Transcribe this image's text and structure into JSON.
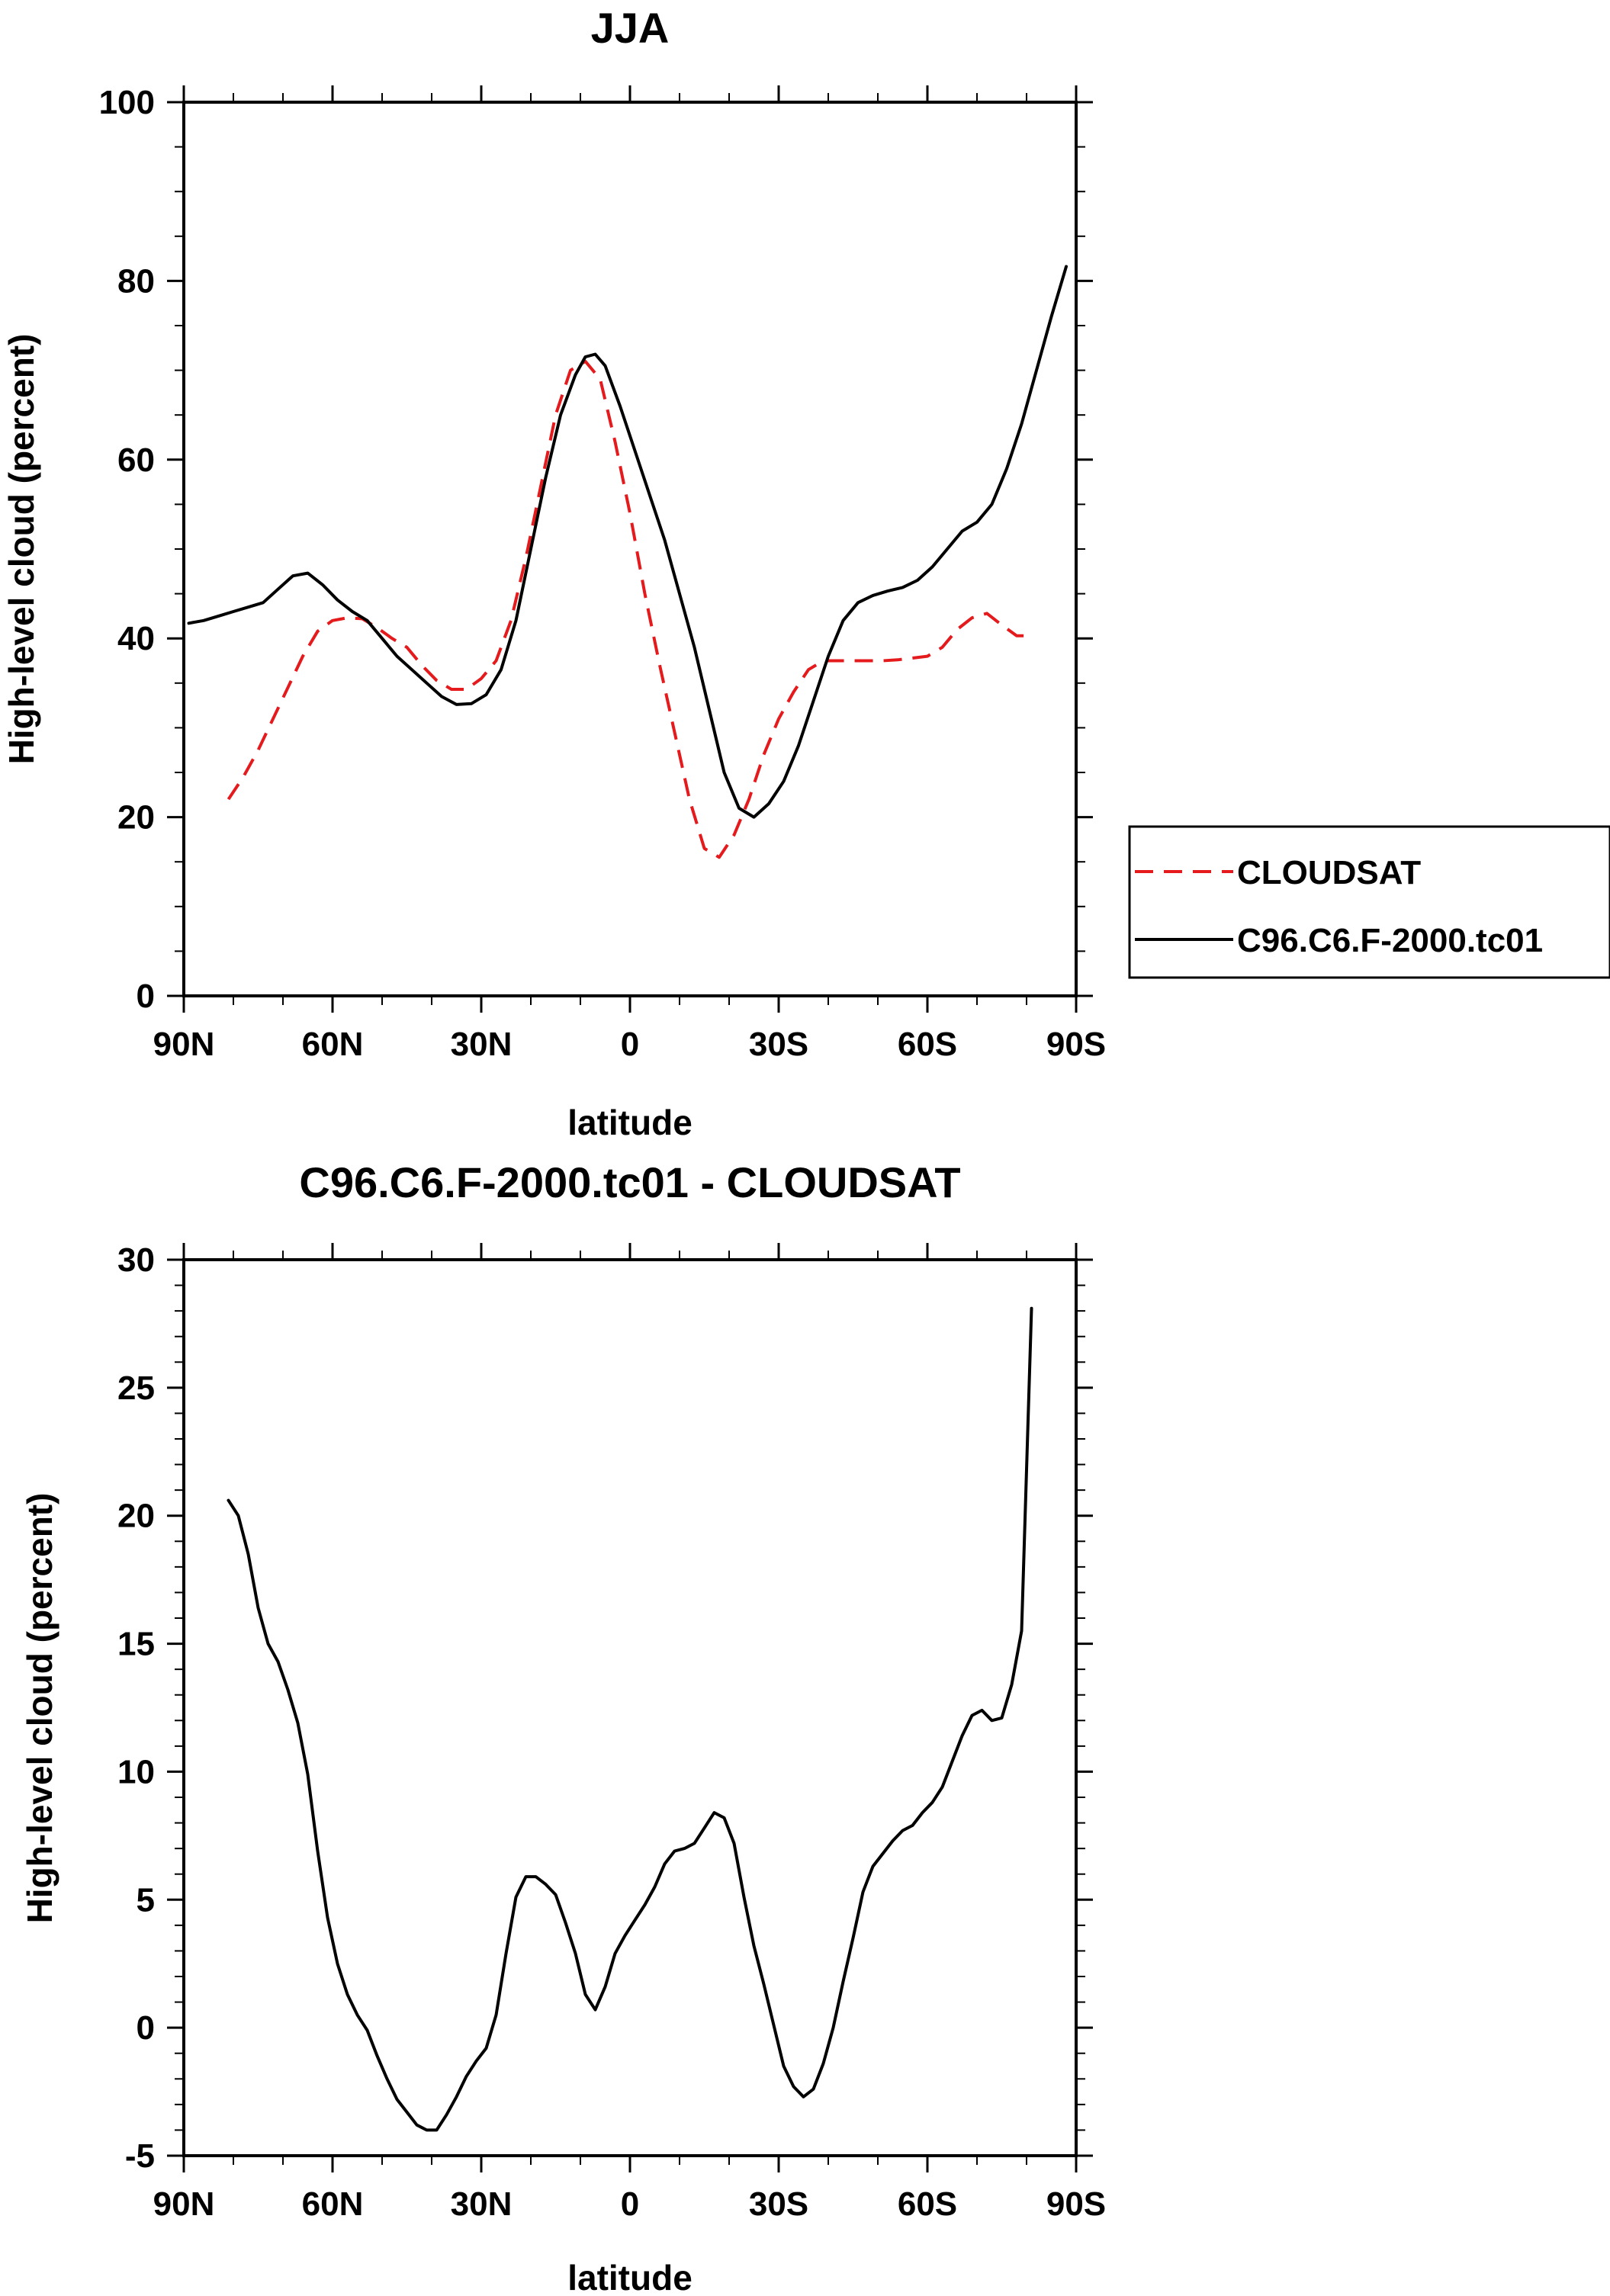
{
  "colors": {
    "cloudsat": "#e41a1c",
    "model": "#000000",
    "frame": "#000000",
    "background": "#ffffff"
  },
  "chart_data": [
    {
      "type": "line",
      "title": "JJA",
      "xlabel": "latitude",
      "ylabel": "High-level cloud (percent)",
      "xlim": [
        -90,
        90
      ],
      "ylim": [
        0,
        100
      ],
      "x_ticks": [
        -90,
        -60,
        -30,
        0,
        30,
        60,
        90
      ],
      "x_tick_labels": [
        "90N",
        "60N",
        "30N",
        "0",
        "30S",
        "60S",
        "90S"
      ],
      "y_ticks": [
        0,
        20,
        40,
        60,
        80,
        100
      ],
      "y_tick_labels": [
        "0",
        "20",
        "40",
        "60",
        "80",
        "100"
      ],
      "grid": false,
      "legend": {
        "placement": "right",
        "entries": [
          "CLOUDSAT",
          "C96.C6.F-2000.tc01"
        ]
      },
      "series": [
        {
          "name": "CLOUDSAT",
          "style": "dashed",
          "color": "#e41a1c",
          "x": [
            -81,
            -78,
            -75,
            -72,
            -69,
            -66,
            -63,
            -60,
            -57,
            -54,
            -51,
            -48,
            -45,
            -42,
            -39,
            -36,
            -33,
            -30,
            -27,
            -24,
            -21,
            -18,
            -15,
            -12,
            -9,
            -6,
            -3,
            0,
            3,
            6,
            9,
            12,
            15,
            18,
            21,
            24,
            27,
            30,
            33,
            36,
            39,
            42,
            45,
            48,
            51,
            54,
            57,
            60,
            63,
            66,
            69,
            72,
            75,
            78,
            81
          ],
          "y": [
            22,
            24.5,
            27.5,
            31,
            34.5,
            38,
            40.8,
            42,
            42.3,
            42.2,
            41.2,
            40,
            39,
            37,
            35.3,
            34.3,
            34.3,
            35.5,
            37.5,
            42,
            49,
            57,
            65,
            70,
            71,
            69,
            62,
            54,
            45,
            37,
            29.5,
            22,
            16.5,
            15.5,
            18,
            22,
            27,
            31,
            34,
            36.5,
            37.5,
            37.5,
            37.5,
            37.5,
            37.5,
            37.6,
            37.8,
            38,
            39,
            41,
            42.3,
            42.8,
            41.5,
            40.3,
            40.3
          ]
        },
        {
          "name": "C96.C6.F-2000.tc01",
          "style": "solid",
          "color": "#000000",
          "x": [
            -89,
            -86,
            -83,
            -80,
            -77,
            -74,
            -71,
            -68,
            -65,
            -62,
            -59,
            -56,
            -53,
            -50,
            -47,
            -44,
            -41,
            -38,
            -35,
            -32,
            -29,
            -26,
            -23,
            -20,
            -17,
            -14,
            -11,
            -9,
            -7,
            -5,
            -2,
            1,
            4,
            7,
            10,
            13,
            16,
            19,
            22,
            25,
            28,
            31,
            34,
            37,
            40,
            43,
            46,
            49,
            52,
            55,
            58,
            61,
            64,
            67,
            70,
            73,
            76,
            79,
            82,
            85,
            88
          ],
          "y": [
            41.7,
            42,
            42.5,
            43,
            43.5,
            44,
            45.5,
            47,
            47.3,
            46,
            44.3,
            43,
            42,
            40,
            38,
            36.5,
            35,
            33.5,
            32.6,
            32.7,
            33.7,
            36.5,
            42,
            50,
            58,
            65,
            69.5,
            71.5,
            71.8,
            70.5,
            66,
            61,
            56,
            51,
            45,
            39,
            32,
            25,
            21,
            20,
            21.5,
            24,
            28,
            33,
            38,
            42,
            44,
            44.8,
            45.3,
            45.7,
            46.5,
            48,
            50,
            52,
            53,
            55,
            59,
            64,
            70,
            76,
            81.6
          ]
        }
      ]
    },
    {
      "type": "line",
      "title": "C96.C6.F-2000.tc01 - CLOUDSAT",
      "xlabel": "latitude",
      "ylabel": "High-level cloud (percent)",
      "xlim": [
        -90,
        90
      ],
      "ylim": [
        -5,
        30
      ],
      "x_ticks": [
        -90,
        -60,
        -30,
        0,
        30,
        60,
        90
      ],
      "x_tick_labels": [
        "90N",
        "60N",
        "30N",
        "0",
        "30S",
        "60S",
        "90S"
      ],
      "y_ticks": [
        -5,
        0,
        5,
        10,
        15,
        20,
        25,
        30
      ],
      "y_tick_labels": [
        "-5",
        "0",
        "5",
        "10",
        "15",
        "20",
        "25",
        "30"
      ],
      "grid": false,
      "series": [
        {
          "style": "solid",
          "color": "#000000",
          "x": [
            -81,
            -79,
            -77,
            -75,
            -73,
            -71,
            -69,
            -67,
            -65,
            -63,
            -61,
            -59,
            -57,
            -55,
            -53,
            -51,
            -49,
            -47,
            -45,
            -43,
            -41,
            -39,
            -37,
            -35,
            -33,
            -31,
            -29,
            -27,
            -25,
            -23,
            -21,
            -19,
            -17,
            -15,
            -13,
            -11,
            -9,
            -7,
            -5,
            -3,
            -1,
            1,
            3,
            5,
            7,
            9,
            11,
            13,
            15,
            17,
            19,
            21,
            23,
            25,
            27,
            29,
            31,
            33,
            35,
            37,
            39,
            41,
            43,
            45,
            47,
            49,
            51,
            53,
            55,
            57,
            59,
            61,
            63,
            65,
            67,
            69,
            71,
            73,
            75,
            77,
            79,
            81
          ],
          "y": [
            20.6,
            20,
            18.5,
            16.4,
            15,
            14.3,
            13.2,
            11.9,
            9.9,
            6.9,
            4.3,
            2.5,
            1.3,
            0.5,
            -0.1,
            -1.1,
            -2,
            -2.8,
            -3.3,
            -3.8,
            -4,
            -4,
            -3.4,
            -2.7,
            -1.9,
            -1.3,
            -0.8,
            0.5,
            2.9,
            5.1,
            5.9,
            5.9,
            5.6,
            5.2,
            4.1,
            2.9,
            1.3,
            0.7,
            1.6,
            2.9,
            3.6,
            4.2,
            4.8,
            5.5,
            6.4,
            6.9,
            7,
            7.2,
            7.8,
            8.4,
            8.2,
            7.2,
            5.1,
            3.2,
            1.7,
            0.1,
            -1.5,
            -2.3,
            -2.7,
            -2.4,
            -1.4,
            0,
            1.8,
            3.5,
            5.3,
            6.3,
            6.8,
            7.3,
            7.7,
            7.9,
            8.4,
            8.8,
            9.4,
            10.4,
            11.4,
            12.2,
            12.4,
            12,
            12.1,
            13.4,
            15.5,
            28.1
          ]
        }
      ]
    }
  ]
}
